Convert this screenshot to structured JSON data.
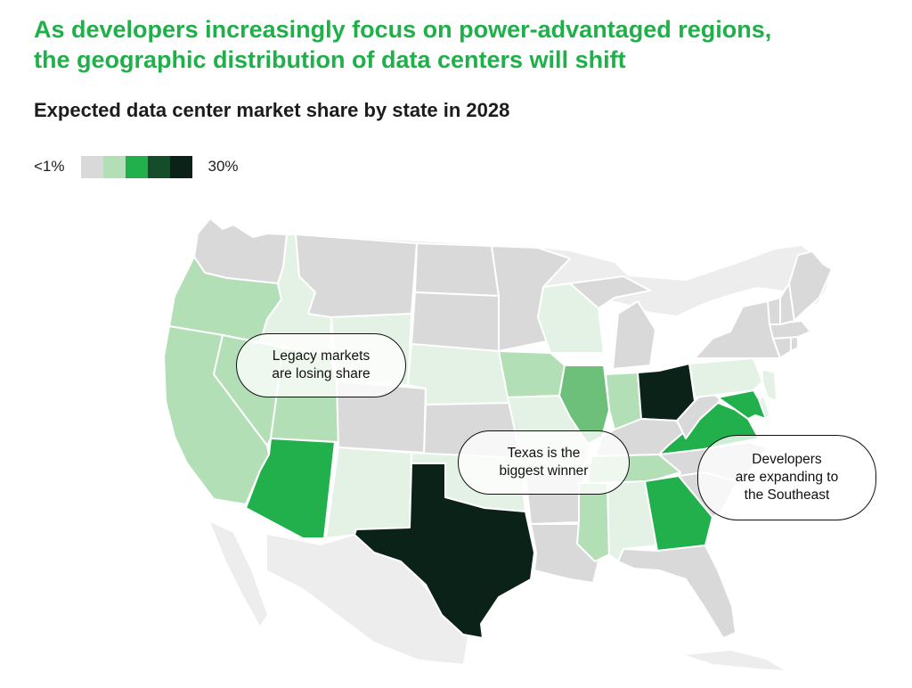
{
  "headline": "As developers increasingly focus on power-advantaged regions,\nthe geographic distribution of data centers will shift",
  "subtitle": "Expected data center market share by state in 2028",
  "legend": {
    "min_label": "<1%",
    "max_label": "30%",
    "colors": [
      "#d9d9d9",
      "#b3dfb6",
      "#22b04c",
      "#154d2a",
      "#0b2219"
    ]
  },
  "colors": {
    "base_gray": "#d9d9d9",
    "tier_1": "#e3f2e4",
    "tier_2": "#b3dfb6",
    "tier_3": "#6cc07a",
    "tier_4": "#22b04c",
    "tier_5": "#0b2219",
    "borders": "#ffffff"
  },
  "states": [
    {
      "name": "Washington",
      "tier": 0
    },
    {
      "name": "Oregon",
      "tier": 2
    },
    {
      "name": "California",
      "tier": 2
    },
    {
      "name": "Nevada",
      "tier": 2
    },
    {
      "name": "Idaho",
      "tier": 1
    },
    {
      "name": "Montana",
      "tier": 0
    },
    {
      "name": "Wyoming",
      "tier": 1
    },
    {
      "name": "Utah",
      "tier": 2
    },
    {
      "name": "Arizona",
      "tier": 4
    },
    {
      "name": "Colorado",
      "tier": 0
    },
    {
      "name": "New Mexico",
      "tier": 1
    },
    {
      "name": "North Dakota",
      "tier": 0
    },
    {
      "name": "South Dakota",
      "tier": 0
    },
    {
      "name": "Nebraska",
      "tier": 1
    },
    {
      "name": "Kansas",
      "tier": 0
    },
    {
      "name": "Oklahoma",
      "tier": 1
    },
    {
      "name": "Texas",
      "tier": 5
    },
    {
      "name": "Minnesota",
      "tier": 0
    },
    {
      "name": "Iowa",
      "tier": 2
    },
    {
      "name": "Missouri",
      "tier": 1
    },
    {
      "name": "Arkansas",
      "tier": 0
    },
    {
      "name": "Louisiana",
      "tier": 0
    },
    {
      "name": "Wisconsin",
      "tier": 1
    },
    {
      "name": "Illinois",
      "tier": 3
    },
    {
      "name": "Michigan",
      "tier": 0
    },
    {
      "name": "Indiana",
      "tier": 2
    },
    {
      "name": "Ohio",
      "tier": 5
    },
    {
      "name": "Kentucky",
      "tier": 0
    },
    {
      "name": "Tennessee",
      "tier": 2
    },
    {
      "name": "Mississippi",
      "tier": 2
    },
    {
      "name": "Alabama",
      "tier": 1
    },
    {
      "name": "Georgia",
      "tier": 4
    },
    {
      "name": "Florida",
      "tier": 0
    },
    {
      "name": "South Carolina",
      "tier": 0
    },
    {
      "name": "North Carolina",
      "tier": 0
    },
    {
      "name": "Virginia",
      "tier": 4
    },
    {
      "name": "West Virginia",
      "tier": 0
    },
    {
      "name": "Pennsylvania",
      "tier": 1
    },
    {
      "name": "New York",
      "tier": 0
    },
    {
      "name": "Maryland",
      "tier": 4
    },
    {
      "name": "Delaware",
      "tier": 1
    },
    {
      "name": "New Jersey",
      "tier": 1
    },
    {
      "name": "Connecticut",
      "tier": 0
    },
    {
      "name": "Rhode Island",
      "tier": 0
    },
    {
      "name": "Massachusetts",
      "tier": 0
    },
    {
      "name": "Vermont",
      "tier": 0
    },
    {
      "name": "New Hampshire",
      "tier": 0
    },
    {
      "name": "Maine",
      "tier": 0
    }
  ],
  "callouts": {
    "legacy": "Legacy markets\nare losing share",
    "texas": "Texas is the\nbiggest winner",
    "southeast": "Developers\nare expanding to\nthe Southeast"
  }
}
